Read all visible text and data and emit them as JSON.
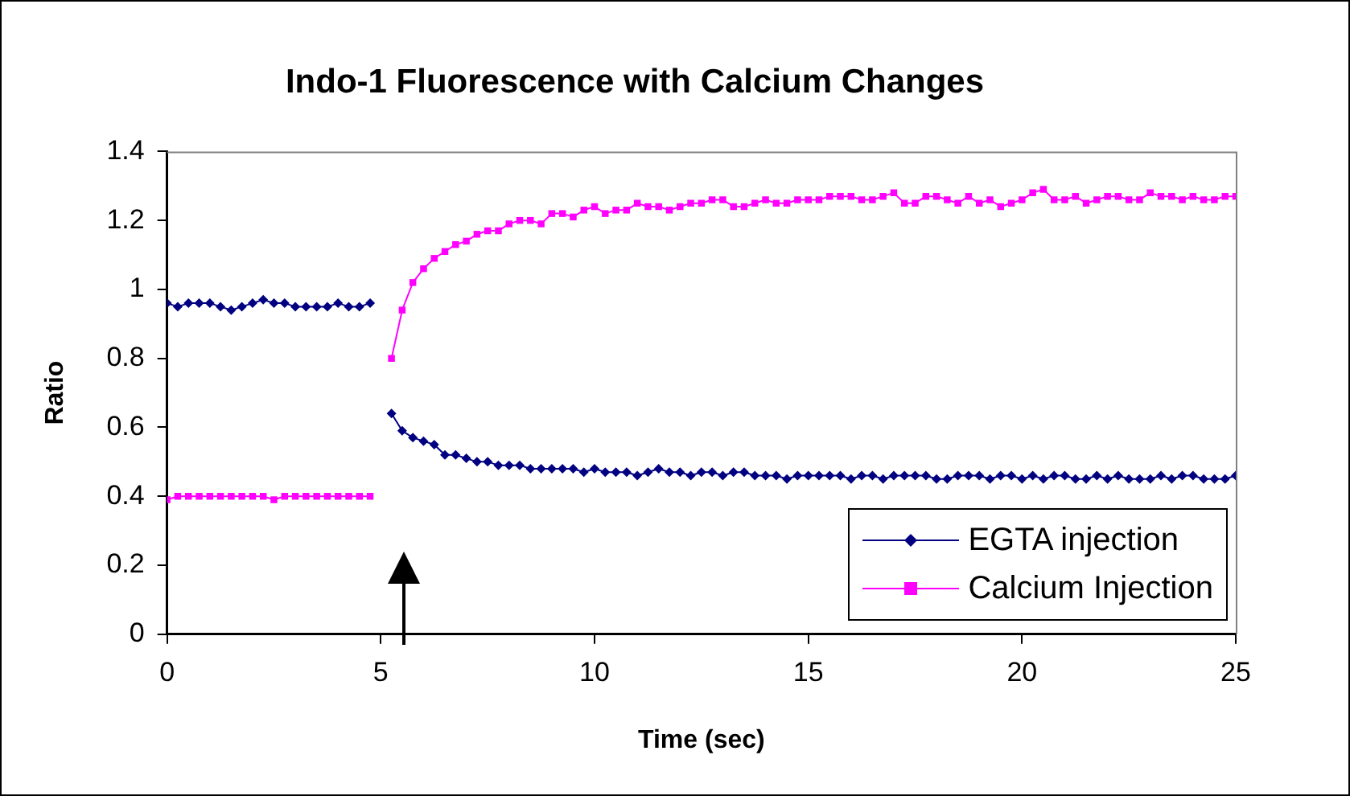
{
  "chart_data": {
    "type": "line",
    "title": "Indo-1 Fluorescence with Calcium Changes",
    "xlabel": "Time (sec)",
    "ylabel": "Ratio",
    "x": [
      0,
      0.25,
      0.5,
      0.75,
      1,
      1.25,
      1.5,
      1.75,
      2,
      2.25,
      2.5,
      2.75,
      3,
      3.25,
      3.5,
      3.75,
      4,
      4.25,
      4.5,
      4.75,
      5,
      5.25,
      5.5,
      5.75,
      6,
      6.25,
      6.5,
      6.75,
      7,
      7.25,
      7.5,
      7.75,
      8,
      8.25,
      8.5,
      8.75,
      9,
      9.25,
      9.5,
      9.75,
      10,
      10.25,
      10.5,
      10.75,
      11,
      11.25,
      11.5,
      11.75,
      12,
      12.25,
      12.5,
      12.75,
      13,
      13.25,
      13.5,
      13.75,
      14,
      14.25,
      14.5,
      14.75,
      15,
      15.25,
      15.5,
      15.75,
      16,
      16.25,
      16.5,
      16.75,
      17,
      17.25,
      17.5,
      17.75,
      18,
      18.25,
      18.5,
      18.75,
      19,
      19.25,
      19.5,
      19.75,
      20,
      20.25,
      20.5,
      20.75,
      21,
      21.25,
      21.5,
      21.75,
      22,
      22.25,
      22.5,
      22.75,
      23,
      23.25,
      23.5,
      23.75,
      24,
      24.25,
      24.5,
      24.75,
      25
    ],
    "series": [
      {
        "name": "EGTA injection",
        "color": "#000080",
        "marker": "diamond",
        "values": [
          0.96,
          0.95,
          0.96,
          0.96,
          0.96,
          0.95,
          0.94,
          0.95,
          0.96,
          0.97,
          0.96,
          0.96,
          0.95,
          0.95,
          0.95,
          0.95,
          0.96,
          0.95,
          0.95,
          0.96,
          null,
          0.64,
          0.59,
          0.57,
          0.56,
          0.55,
          0.52,
          0.52,
          0.51,
          0.5,
          0.5,
          0.49,
          0.49,
          0.49,
          0.48,
          0.48,
          0.48,
          0.48,
          0.48,
          0.47,
          0.48,
          0.47,
          0.47,
          0.47,
          0.46,
          0.47,
          0.48,
          0.47,
          0.47,
          0.46,
          0.47,
          0.47,
          0.46,
          0.47,
          0.47,
          0.46,
          0.46,
          0.46,
          0.45,
          0.46,
          0.46,
          0.46,
          0.46,
          0.46,
          0.45,
          0.46,
          0.46,
          0.45,
          0.46,
          0.46,
          0.46,
          0.46,
          0.45,
          0.45,
          0.46,
          0.46,
          0.46,
          0.45,
          0.46,
          0.46,
          0.45,
          0.46,
          0.45,
          0.46,
          0.46,
          0.45,
          0.45,
          0.46,
          0.45,
          0.46,
          0.45,
          0.45,
          0.45,
          0.46,
          0.45,
          0.46,
          0.46,
          0.45,
          0.45,
          0.45,
          0.46
        ]
      },
      {
        "name": "Calcium Injection",
        "color": "#ff00ff",
        "marker": "square",
        "values": [
          0.39,
          0.4,
          0.4,
          0.4,
          0.4,
          0.4,
          0.4,
          0.4,
          0.4,
          0.4,
          0.39,
          0.4,
          0.4,
          0.4,
          0.4,
          0.4,
          0.4,
          0.4,
          0.4,
          0.4,
          null,
          0.8,
          0.94,
          1.02,
          1.06,
          1.09,
          1.11,
          1.13,
          1.14,
          1.16,
          1.17,
          1.17,
          1.19,
          1.2,
          1.2,
          1.19,
          1.22,
          1.22,
          1.21,
          1.23,
          1.24,
          1.22,
          1.23,
          1.23,
          1.25,
          1.24,
          1.24,
          1.23,
          1.24,
          1.25,
          1.25,
          1.26,
          1.26,
          1.24,
          1.24,
          1.25,
          1.26,
          1.25,
          1.25,
          1.26,
          1.26,
          1.26,
          1.27,
          1.27,
          1.27,
          1.26,
          1.26,
          1.27,
          1.28,
          1.25,
          1.25,
          1.27,
          1.27,
          1.26,
          1.25,
          1.27,
          1.25,
          1.26,
          1.24,
          1.25,
          1.26,
          1.28,
          1.29,
          1.26,
          1.26,
          1.27,
          1.25,
          1.26,
          1.27,
          1.27,
          1.26,
          1.26,
          1.28,
          1.27,
          1.27,
          1.26,
          1.27,
          1.26,
          1.26,
          1.27,
          1.27
        ]
      }
    ],
    "xlim": [
      0,
      25
    ],
    "xticks": [
      0,
      5,
      10,
      15,
      20,
      25
    ],
    "ylim": [
      0,
      1.4
    ],
    "yticks": [
      0,
      0.2,
      0.4,
      0.6,
      0.8,
      1,
      1.2,
      1.4
    ],
    "legend": "bottom right"
  }
}
